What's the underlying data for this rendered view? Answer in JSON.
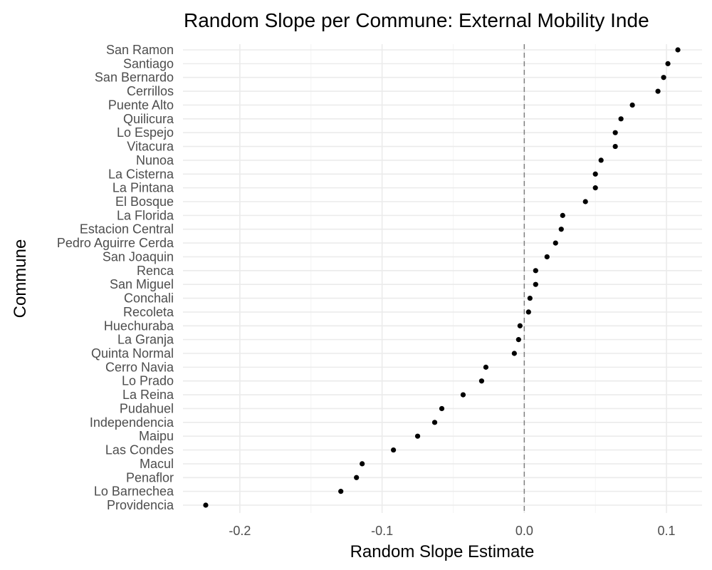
{
  "chart_data": {
    "type": "scatter",
    "title": "Random Slope per Commune: External Mobility Inde",
    "xlabel": "Random Slope Estimate",
    "ylabel": "Commune",
    "xlim": [
      -0.24,
      0.125
    ],
    "x_ticks": [
      -0.2,
      -0.1,
      0.0,
      0.1
    ],
    "x_tick_labels": [
      "-0.2",
      "-0.1",
      "0.0",
      "0.1"
    ],
    "grid": true,
    "reference_line": {
      "x": 0,
      "style": "dashed",
      "color": "#808080"
    },
    "point_color": "#000000",
    "categories": [
      "San Ramon",
      "Santiago",
      "San Bernardo",
      "Cerrillos",
      "Puente Alto",
      "Quilicura",
      "Lo Espejo",
      "Vitacura",
      "Nunoa",
      "La Cisterna",
      "La Pintana",
      "El Bosque",
      "La Florida",
      "Estacion Central",
      "Pedro Aguirre Cerda",
      "San Joaquin",
      "Renca",
      "San Miguel",
      "Conchali",
      "Recoleta",
      "Huechuraba",
      "La Granja",
      "Quinta Normal",
      "Cerro Navia",
      "Lo Prado",
      "La Reina",
      "Pudahuel",
      "Independencia",
      "Maipu",
      "Las Condes",
      "Macul",
      "Penaflor",
      "Lo Barnechea",
      "Providencia"
    ],
    "values": [
      0.108,
      0.101,
      0.098,
      0.094,
      0.076,
      0.068,
      0.064,
      0.064,
      0.054,
      0.05,
      0.05,
      0.043,
      0.027,
      0.026,
      0.022,
      0.016,
      0.008,
      0.008,
      0.004,
      0.003,
      -0.003,
      -0.004,
      -0.007,
      -0.027,
      -0.03,
      -0.043,
      -0.058,
      -0.063,
      -0.075,
      -0.092,
      -0.114,
      -0.118,
      -0.129,
      -0.224
    ]
  }
}
